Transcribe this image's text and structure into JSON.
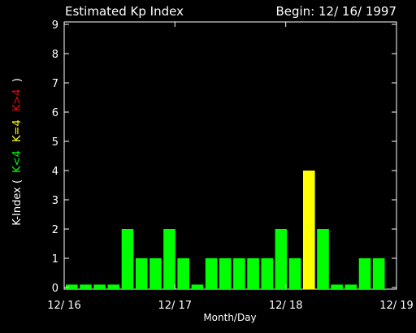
{
  "header": {
    "title": "Estimated Kp Index",
    "begin": "Begin: 12/ 16/ 1997"
  },
  "ylabel": {
    "prefix": "K-Index (",
    "low": "K<4",
    "mid": "K=4",
    "high": "K>4",
    "suffix": ")"
  },
  "xlabel": "Month/Day",
  "colors": {
    "background": "#000000",
    "axis": "#ffffff",
    "low": "#00ff00",
    "mid": "#ffff00",
    "high": "#ff0000"
  },
  "chart_data": {
    "type": "bar",
    "title": "Estimated Kp Index",
    "xlabel": "Month/Day",
    "ylabel": "K-Index ( K<4  K=4  K>4 )",
    "ylim": [
      0,
      9
    ],
    "yticks": [
      "0",
      "1",
      "2",
      "3",
      "4",
      "5",
      "6",
      "7",
      "8",
      "9"
    ],
    "xticks": [
      "12/ 16",
      "12/ 17",
      "12/ 18",
      "12/ 19"
    ],
    "interval_hours": 3,
    "values": [
      0.1,
      0.1,
      0.1,
      0.1,
      2,
      1,
      1,
      2,
      1,
      0.1,
      1,
      1,
      1,
      1,
      1,
      2,
      1,
      4,
      2,
      0.1,
      0.1,
      1,
      1,
      0
    ],
    "grid": false,
    "legend": "none"
  }
}
